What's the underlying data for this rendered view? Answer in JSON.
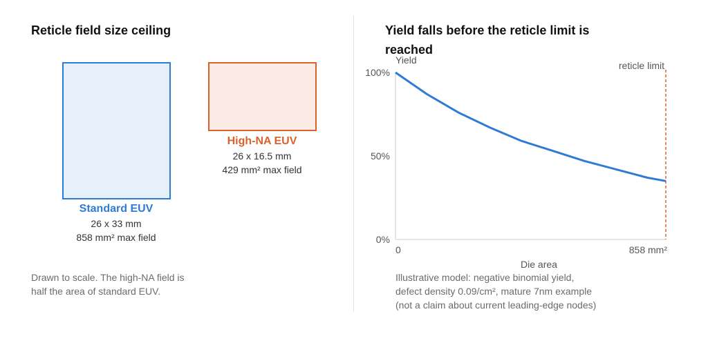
{
  "left_panel": {
    "title": "Reticle field size ceiling",
    "standard": {
      "name": "Standard EUV",
      "dims": "26 x 33 mm",
      "area": "858 mm² max field",
      "color": "#2e7bd6",
      "fill": "#e6f0fa"
    },
    "high_na": {
      "name": "High-NA EUV",
      "dims": "26 x 16.5 mm",
      "area": "429 mm² max field",
      "color": "#d9622b",
      "fill": "#faebe4"
    },
    "note_line1": "Drawn to scale. The high-NA field is",
    "note_line2": "half the area of standard EUV."
  },
  "right_panel": {
    "title": "Yield falls before the reticle limit is reached",
    "note_lines": [
      "Illustrative model: negative binomial yield,",
      "defect density 0.09/cm², mature 7nm example",
      "(not a claim about current leading-edge nodes)"
    ]
  },
  "chart_data": {
    "type": "line",
    "title": "Yield falls before the reticle limit is reached",
    "ylabel": "Yield",
    "xlabel": "Die area",
    "x_tick_labels": [
      "0",
      "858 mm²"
    ],
    "y_tick_labels": [
      "0%",
      "50%",
      "100%"
    ],
    "xlim": [
      0,
      858
    ],
    "ylim": [
      0,
      100
    ],
    "series": [
      {
        "color": "#2e7bd6",
        "x": [
          0,
          100,
          200,
          300,
          400,
          500,
          600,
          700,
          800,
          858
        ],
        "y": [
          100,
          87,
          76,
          67,
          59,
          53,
          47,
          42,
          37,
          35
        ]
      }
    ],
    "annotation": {
      "label": "reticle limit",
      "x": 858,
      "color": "#d9622b"
    },
    "grid": false
  }
}
